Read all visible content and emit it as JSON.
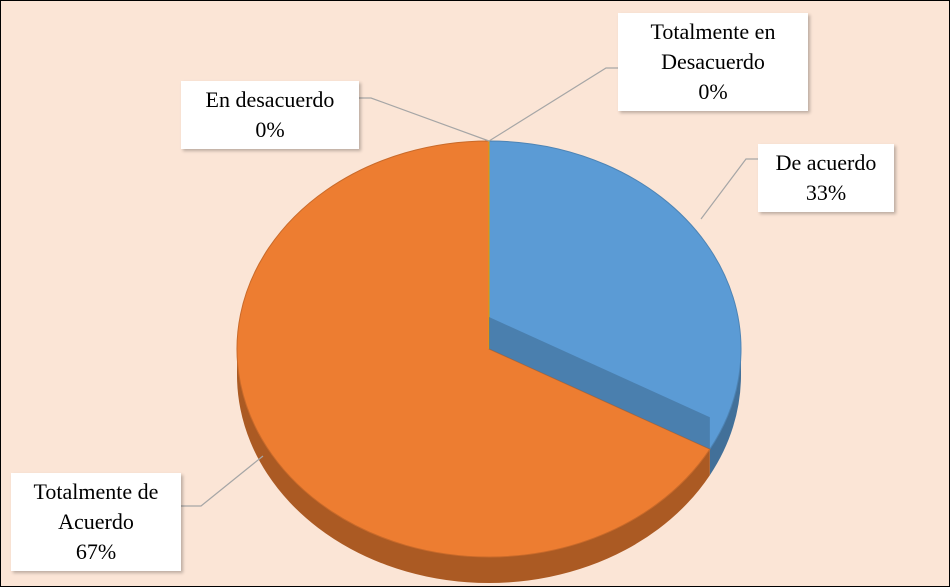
{
  "chart_data": {
    "type": "pie3d",
    "categories": [
      "De acuerdo",
      "Totalmente de Acuerdo",
      "En desacuerdo",
      "Totalmente en Desacuerdo"
    ],
    "values": [
      33,
      67,
      0,
      0
    ],
    "value_labels": [
      "33%",
      "67%",
      "0%",
      "0%"
    ],
    "colors": [
      "#5b9bd5",
      "#ed7d31",
      "#a5a5a5",
      "#ffc000"
    ]
  }
}
